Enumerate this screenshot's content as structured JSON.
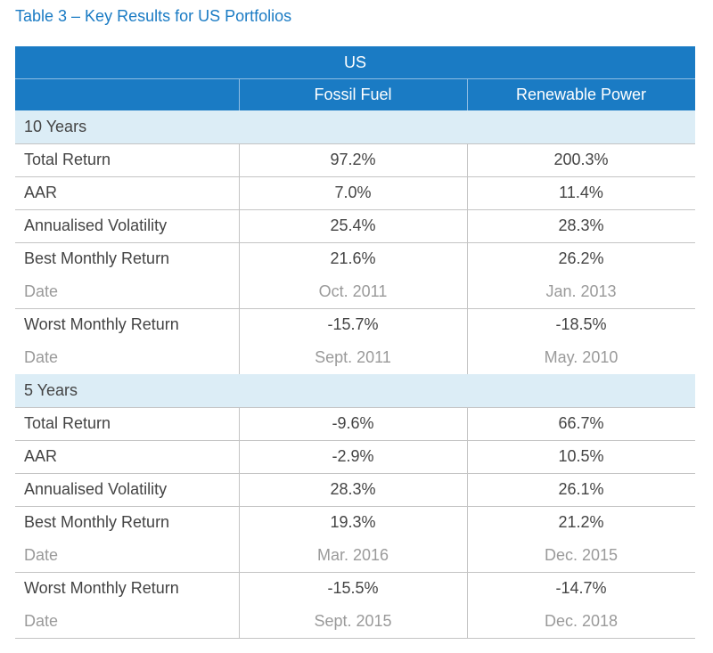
{
  "title": "Table 3 – Key Results for US Portfolios",
  "header": {
    "group": "US",
    "columns": [
      "",
      "Fossil Fuel",
      "Renewable Power"
    ]
  },
  "sections": [
    {
      "title": "10 Years",
      "rows": [
        {
          "cells": [
            "Total Return",
            "97.2%",
            "200.3%"
          ]
        },
        {
          "cells": [
            "AAR",
            "7.0%",
            "11.4%"
          ]
        },
        {
          "cells": [
            "Annualised Volatility",
            "25.4%",
            "28.3%"
          ]
        },
        {
          "cells": [
            "Best Monthly Return",
            "21.6%",
            "26.2%"
          ],
          "date": [
            "Date",
            "Oct. 2011",
            "Jan. 2013"
          ]
        },
        {
          "cells": [
            "Worst Monthly Return",
            "-15.7%",
            "-18.5%"
          ],
          "date": [
            "Date",
            "Sept. 2011",
            "May. 2010"
          ]
        }
      ]
    },
    {
      "title": "5 Years",
      "rows": [
        {
          "cells": [
            "Total Return",
            "-9.6%",
            "66.7%"
          ]
        },
        {
          "cells": [
            "AAR",
            "-2.9%",
            "10.5%"
          ]
        },
        {
          "cells": [
            "Annualised Volatility",
            "28.3%",
            "26.1%"
          ]
        },
        {
          "cells": [
            "Best Monthly Return",
            "19.3%",
            "21.2%"
          ],
          "date": [
            "Date",
            "Mar. 2016",
            "Dec. 2015"
          ]
        },
        {
          "cells": [
            "Worst Monthly Return",
            "-15.5%",
            "-14.7%"
          ],
          "date": [
            "Date",
            "Sept. 2015",
            "Dec. 2018"
          ]
        }
      ]
    }
  ]
}
